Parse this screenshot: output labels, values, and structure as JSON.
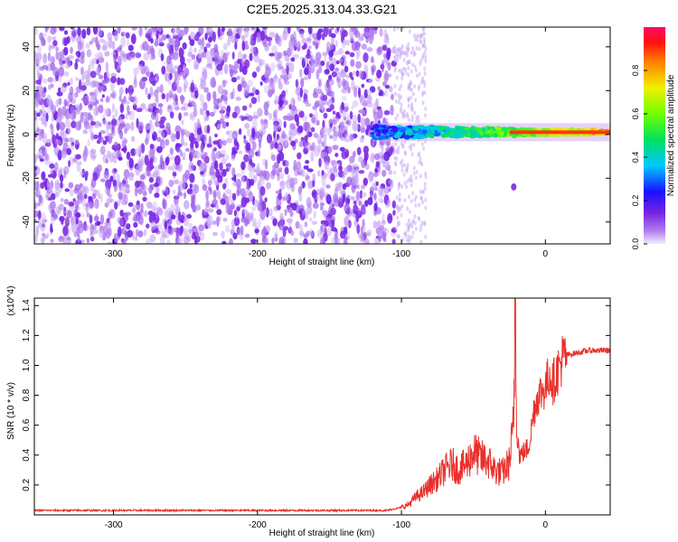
{
  "title": "C2E5.2025.313.04.33.G21",
  "chart_data": [
    {
      "type": "heatmap",
      "xlabel": "Height of straight line (km)",
      "ylabel": "Frequency (Hz)",
      "xlim": [
        -355,
        45
      ],
      "ylim": [
        -50,
        49
      ],
      "xticks": [
        -300,
        -200,
        -100,
        0
      ],
      "yticks": [
        -40,
        -20,
        0,
        20,
        40
      ],
      "colorbar": {
        "label": "Normalized spectral amplitude",
        "range": [
          0.0,
          1.0
        ],
        "ticks": [
          0.0,
          0.2,
          0.4,
          0.6,
          0.8
        ]
      },
      "features": {
        "diffuse_noise_region_km": [
          -355,
          -105
        ],
        "signal_band_frequency_hz": 1,
        "signal_band_start_km": -120,
        "isolated_blob": {
          "x_km": -22,
          "freq_hz": -24
        }
      }
    },
    {
      "type": "line",
      "xlabel": "Height of straight line (km)",
      "ylabel": "SNR (10 * v/v)",
      "y_multiplier": "(x10^4)",
      "xlim": [
        -355,
        45
      ],
      "ylim": [
        0,
        1.45
      ],
      "xticks": [
        -300,
        -200,
        -100,
        0
      ],
      "yticks": [
        0.2,
        0.4,
        0.6,
        0.8,
        1.0,
        1.2,
        1.4
      ],
      "series": [
        {
          "name": "SNR",
          "color": "#e8302b",
          "points": [
            [
              -355,
              0.03
            ],
            [
              -250,
              0.03
            ],
            [
              -150,
              0.03
            ],
            [
              -110,
              0.03
            ],
            [
              -100,
              0.05
            ],
            [
              -95,
              0.07
            ],
            [
              -90,
              0.12
            ],
            [
              -85,
              0.15
            ],
            [
              -80,
              0.2
            ],
            [
              -75,
              0.24
            ],
            [
              -70,
              0.3
            ],
            [
              -65,
              0.34
            ],
            [
              -60,
              0.3
            ],
            [
              -55,
              0.34
            ],
            [
              -50,
              0.42
            ],
            [
              -45,
              0.38
            ],
            [
              -40,
              0.36
            ],
            [
              -35,
              0.3
            ],
            [
              -30,
              0.28
            ],
            [
              -25,
              0.35
            ],
            [
              -22,
              0.6
            ],
            [
              -21,
              1.45
            ],
            [
              -20,
              0.6
            ],
            [
              -18,
              0.4
            ],
            [
              -15,
              0.42
            ],
            [
              -12,
              0.45
            ],
            [
              -10,
              0.55
            ],
            [
              -8,
              0.7
            ],
            [
              -5,
              0.8
            ],
            [
              0,
              0.85
            ],
            [
              3,
              0.95
            ],
            [
              5,
              0.88
            ],
            [
              8,
              0.95
            ],
            [
              10,
              1.0
            ],
            [
              12,
              1.05
            ],
            [
              15,
              1.07
            ],
            [
              20,
              1.08
            ],
            [
              25,
              1.09
            ],
            [
              30,
              1.1
            ],
            [
              35,
              1.1
            ],
            [
              40,
              1.1
            ],
            [
              45,
              1.1
            ]
          ]
        }
      ]
    }
  ],
  "colors": {
    "line": "#e8302b",
    "noise": "#7a25e0",
    "background": "#ffffff"
  }
}
